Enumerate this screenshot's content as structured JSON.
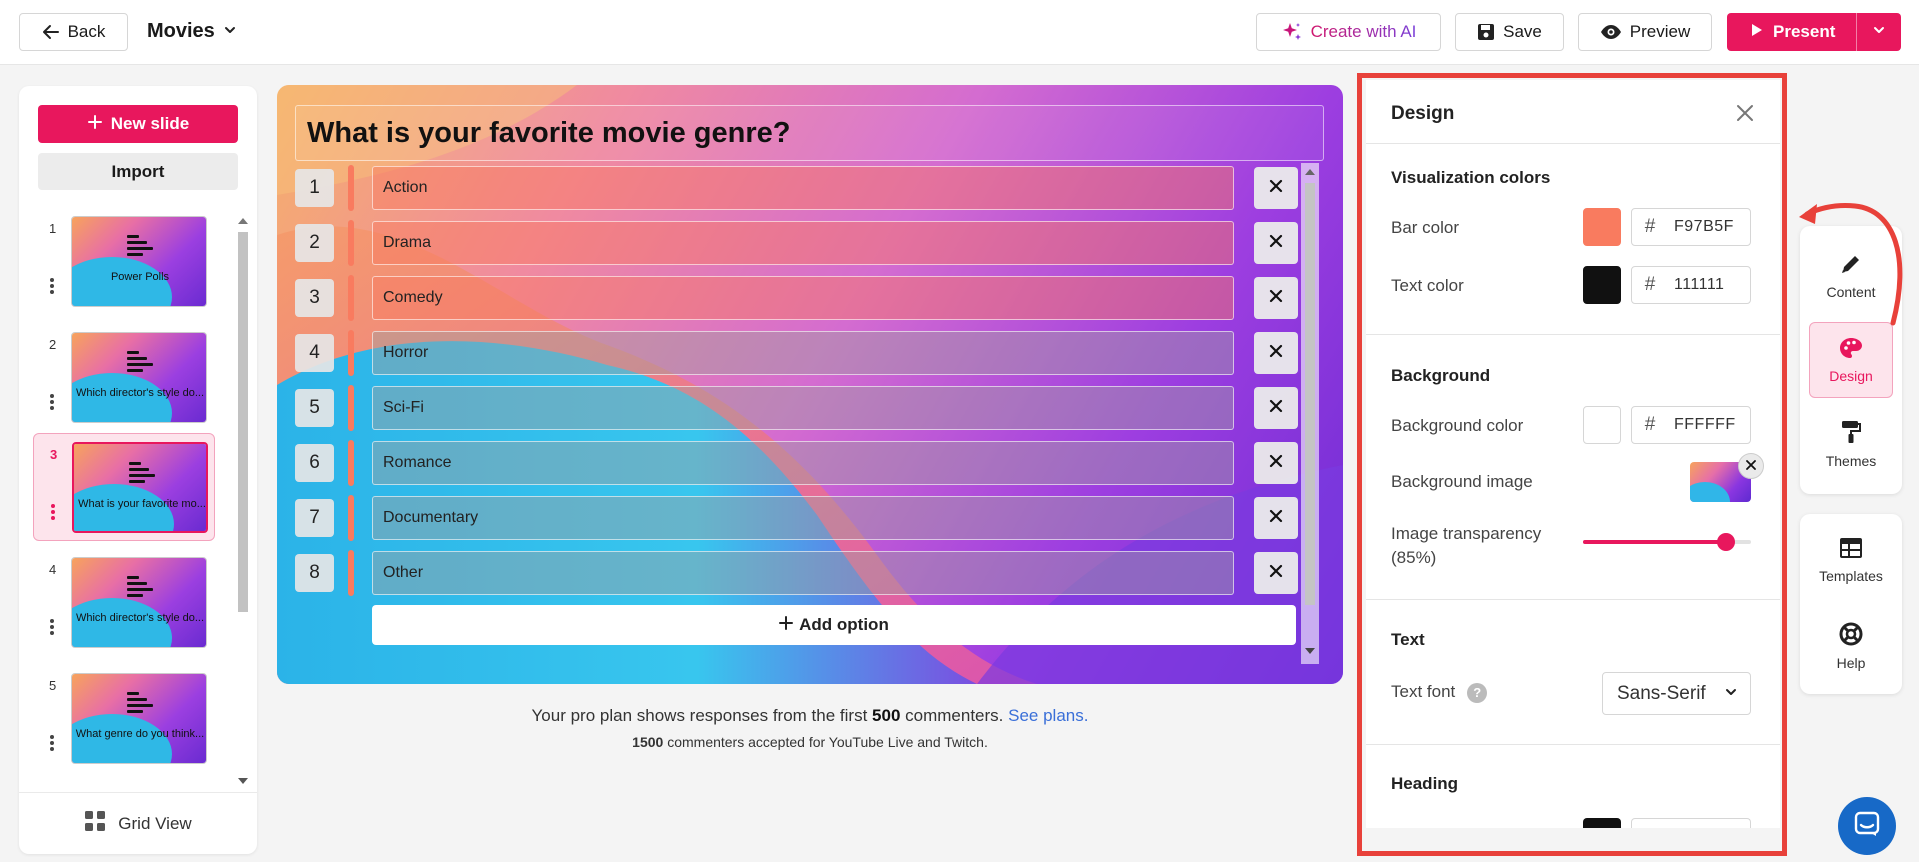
{
  "topbar": {
    "back_label": "Back",
    "title": "Movies",
    "ai_label": "Create with AI",
    "save_label": "Save",
    "preview_label": "Preview",
    "present_label": "Present"
  },
  "sidebar": {
    "new_slide_label": "New slide",
    "import_label": "Import",
    "grid_view_label": "Grid View",
    "slides": [
      {
        "num": "1",
        "text": "Power Polls"
      },
      {
        "num": "2",
        "text": "Which director's style do..."
      },
      {
        "num": "3",
        "text": "What is your favorite mo..."
      },
      {
        "num": "4",
        "text": "Which director's style do..."
      },
      {
        "num": "5",
        "text": "What genre do you think..."
      }
    ],
    "active_slide": 3
  },
  "slide": {
    "question": "What is your favorite movie genre?",
    "options": [
      {
        "num": "1",
        "label": "Action"
      },
      {
        "num": "2",
        "label": "Drama"
      },
      {
        "num": "3",
        "label": "Comedy"
      },
      {
        "num": "4",
        "label": "Horror"
      },
      {
        "num": "5",
        "label": "Sci-Fi"
      },
      {
        "num": "6",
        "label": "Romance"
      },
      {
        "num": "7",
        "label": "Documentary"
      },
      {
        "num": "8",
        "label": "Other"
      }
    ],
    "add_option_label": "Add option"
  },
  "plan_note": {
    "line1_pre": "Your pro plan shows responses from the first",
    "line1_count": "500",
    "line1_post": "commenters.",
    "line1_link": "See plans.",
    "line2_count": "1500",
    "line2_text": "commenters accepted for YouTube Live and Twitch."
  },
  "design_panel": {
    "title": "Design",
    "viz_section": "Visualization colors",
    "bar_color_label": "Bar color",
    "bar_color_hex": "F97B5F",
    "text_color_label": "Text color",
    "text_color_hex": "111111",
    "background_section": "Background",
    "bg_color_label": "Background color",
    "bg_color_hex": "FFFFFF",
    "bg_image_label": "Background image",
    "transparency_label": "Image transparency (85%)",
    "transparency_value": 0.85,
    "text_section": "Text",
    "text_font_label": "Text font",
    "text_font_value": "Sans-Serif",
    "heading_section": "Heading"
  },
  "right_rail": {
    "content_label": "Content",
    "design_label": "Design",
    "themes_label": "Themes",
    "templates_label": "Templates",
    "help_label": "Help"
  },
  "colors": {
    "accent": "#e8175d",
    "bar": "#F97B5F",
    "text": "#111111",
    "background": "#FFFFFF",
    "annotation": "#e8413a"
  }
}
